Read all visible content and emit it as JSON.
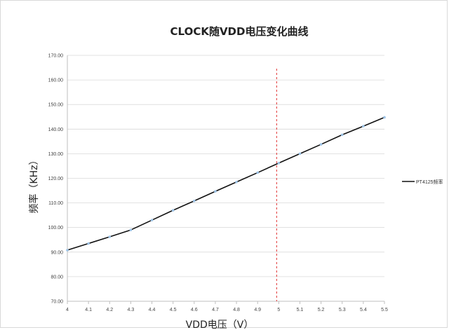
{
  "chart_data": {
    "type": "line",
    "title": "CLOCK随VDD电压变化曲线",
    "xlabel": "VDD电压（V）",
    "ylabel": "频率（KHz）",
    "x": [
      4,
      4.1,
      4.2,
      4.3,
      4.4,
      4.5,
      4.6,
      4.7,
      4.8,
      4.9,
      5,
      5.1,
      5.2,
      5.3,
      5.4,
      5.5
    ],
    "x_tick_labels": [
      "4",
      "4.1",
      "4.2",
      "4.3",
      "4.4",
      "4.5",
      "4.6",
      "4.7",
      "4.8",
      "4.9",
      "5",
      "5.1",
      "5.2",
      "5.3",
      "5.4",
      "5.5"
    ],
    "y_tick_labels": [
      "70.00",
      "80.00",
      "90.00",
      "100.00",
      "110.00",
      "120.00",
      "130.00",
      "140.00",
      "150.00",
      "160.00",
      "170.00"
    ],
    "xlim": [
      4,
      5.5
    ],
    "ylim": [
      70,
      170
    ],
    "ytick_step": 10,
    "series": [
      {
        "name": "PT4125频率",
        "color": "#111111",
        "marker_color": "#9dc3e6",
        "values": [
          90.8,
          93.5,
          96.2,
          99.0,
          103.0,
          107.0,
          110.8,
          114.7,
          118.5,
          122.3,
          126.2,
          130.0,
          133.8,
          137.7,
          141.2,
          144.8
        ]
      }
    ],
    "reference_line": {
      "x": 4.99,
      "color": "#e03030",
      "style": "dashed"
    },
    "grid": {
      "horizontal": true,
      "vertical": false,
      "color": "#d9d9d9"
    },
    "legend": {
      "position": "right"
    }
  }
}
